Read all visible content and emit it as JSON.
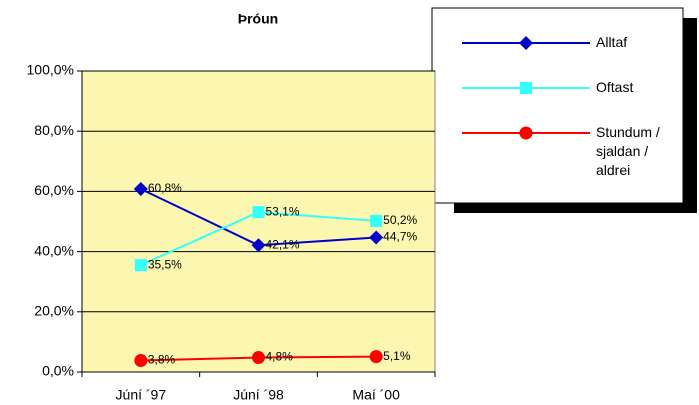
{
  "chart_data": {
    "type": "line",
    "title": "Þróun",
    "categories": [
      "Júní ´97",
      "Júní ´98",
      "Maí ´00"
    ],
    "series": [
      {
        "name": "Alltaf",
        "color": "#0000cc",
        "marker": "diamond",
        "values": [
          60.8,
          42.1,
          44.7
        ],
        "value_labels": [
          "60,8%",
          "42,1%",
          "44,7%"
        ]
      },
      {
        "name": "Oftast",
        "color": "#33ffff",
        "marker": "square",
        "values": [
          35.5,
          53.1,
          50.2
        ],
        "value_labels": [
          "35,5%",
          "53,1%",
          "50,2%"
        ]
      },
      {
        "name": "Stundum / sjaldan / aldrei",
        "color": "#ff0000",
        "marker": "circle",
        "values": [
          3.8,
          4.8,
          5.1
        ],
        "value_labels": [
          "3,8%",
          "4,8%",
          "5,1%"
        ]
      }
    ],
    "ylim": [
      0,
      100
    ],
    "yticks": [
      {
        "value": 0,
        "label": "0,0%"
      },
      {
        "value": 20,
        "label": "20,0%"
      },
      {
        "value": 40,
        "label": "40,0%"
      },
      {
        "value": 60,
        "label": "60,0%"
      },
      {
        "value": 80,
        "label": "80,0%"
      },
      {
        "value": 100,
        "label": "100,0%"
      }
    ],
    "grid": true,
    "legend": "right",
    "plot_background": "#fbf7b0"
  }
}
